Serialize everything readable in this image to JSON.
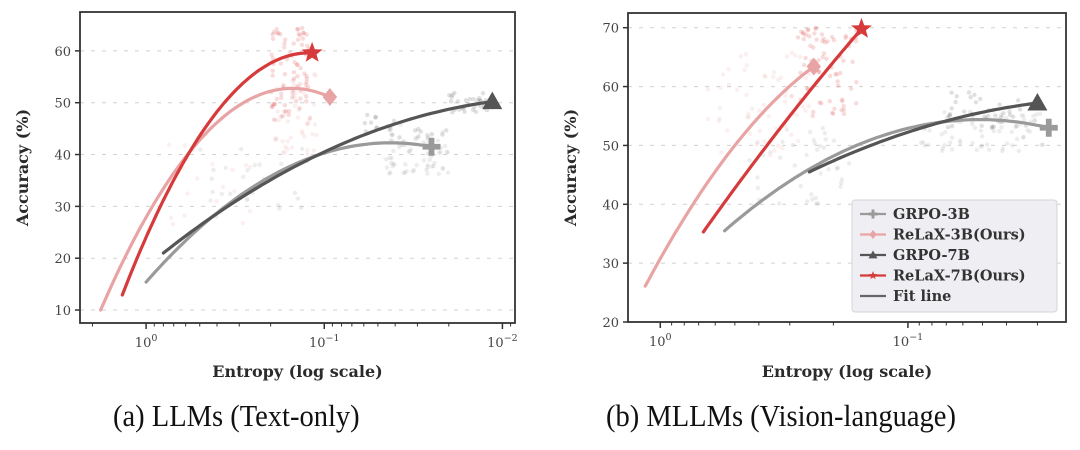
{
  "chart_data": [
    {
      "type": "scatter",
      "panel": "a",
      "caption": "(a) LLMs (Text-only)",
      "xlabel": "Entropy (log scale)",
      "ylabel": "Accuracy (%)",
      "xscale": "log",
      "x_inverted": true,
      "xlim": [
        2.35,
        0.0085
      ],
      "ylim": [
        7.5,
        67.5
      ],
      "xticks": [
        {
          "value": 1,
          "label": "10",
          "exp": "0"
        },
        {
          "value": 0.1,
          "label": "10",
          "exp": "−1"
        },
        {
          "value": 0.01,
          "label": "10",
          "exp": "−2"
        }
      ],
      "yticks": [
        10,
        20,
        30,
        40,
        50,
        60
      ],
      "grid": "horizontal-dashed",
      "legend": null,
      "series": [
        {
          "name": "GRPO-3B",
          "color": "#9a9a9a",
          "marker": "plus",
          "fit_line": [
            [
              1.0,
              15.4
            ],
            [
              0.2,
              35.8
            ],
            [
              0.025,
              41.5
            ]
          ],
          "final_point": [
            0.025,
            41.5
          ],
          "scatter_clusters": [
            {
              "x": [
                0.02,
                0.045
              ],
              "y": [
                36,
                46
              ],
              "n": 70
            },
            {
              "x": [
                0.12,
                0.5
              ],
              "y": [
                28,
                42
              ],
              "n": 25
            }
          ]
        },
        {
          "name": "ReLaX-3B(Ours)",
          "color": "#e8a4a4",
          "marker": "diamond",
          "fit_line": [
            [
              1.8,
              10.0
            ],
            [
              0.57,
              40.5
            ],
            [
              0.093,
              51.1
            ]
          ],
          "final_point": [
            0.093,
            51.1
          ],
          "scatter_clusters": [
            {
              "x": [
                0.11,
                0.2
              ],
              "y": [
                40,
                56
              ],
              "n": 50
            },
            {
              "x": [
                0.25,
                0.8
              ],
              "y": [
                26,
                42
              ],
              "n": 20
            }
          ]
        },
        {
          "name": "GRPO-7B",
          "color": "#555555",
          "marker": "triangle",
          "fit_line": [
            [
              0.8,
              21.0
            ],
            [
              0.1,
              40.5
            ],
            [
              0.0114,
              50.2
            ]
          ],
          "final_point": [
            0.0114,
            50.2
          ],
          "scatter_clusters": [
            {
              "x": [
                0.011,
                0.02
              ],
              "y": [
                48,
                52
              ],
              "n": 40
            },
            {
              "x": [
                0.02,
                0.06
              ],
              "y": [
                42,
                49
              ],
              "n": 20
            }
          ]
        },
        {
          "name": "ReLaX-7B(Ours)",
          "color": "#d63a3a",
          "marker": "star",
          "fit_line": [
            [
              1.36,
              12.9
            ],
            [
              0.57,
              40.5
            ],
            [
              0.117,
              59.6
            ]
          ],
          "final_point": [
            0.117,
            59.6
          ],
          "scatter_clusters": [
            {
              "x": [
                0.12,
                0.2
              ],
              "y": [
                45,
                65
              ],
              "n": 80
            }
          ]
        }
      ]
    },
    {
      "type": "scatter",
      "panel": "b",
      "caption": "(b) MLLMs (Vision-language)",
      "xlabel": "Entropy (log scale)",
      "ylabel": "Accuracy (%)",
      "xscale": "log",
      "x_inverted": true,
      "xlim": [
        1.35,
        0.023
      ],
      "ylim": [
        20,
        72.5
      ],
      "xticks": [
        {
          "value": 1,
          "label": "10",
          "exp": "0"
        },
        {
          "value": 0.1,
          "label": "10",
          "exp": "−1"
        }
      ],
      "yticks": [
        20,
        30,
        40,
        50,
        60,
        70
      ],
      "grid": "horizontal-dashed",
      "legend": {
        "placement": "lower-right",
        "entries": [
          "GRPO-3B",
          "ReLaX-3B(Ours)",
          "GRPO-7B",
          "ReLaX-7B(Ours)",
          "Fit line"
        ]
      },
      "series": [
        {
          "name": "GRPO-3B",
          "color": "#9a9a9a",
          "marker": "plus",
          "fit_line": [
            [
              0.55,
              35.5
            ],
            [
              0.13,
              51.5
            ],
            [
              0.027,
              53.0
            ]
          ],
          "final_point": [
            0.027,
            53.0
          ],
          "scatter_clusters": [
            {
              "x": [
                0.027,
                0.09
              ],
              "y": [
                49,
                56
              ],
              "n": 70
            },
            {
              "x": [
                0.15,
                0.45
              ],
              "y": [
                40,
                53
              ],
              "n": 40
            }
          ]
        },
        {
          "name": "ReLaX-3B(Ours)",
          "color": "#e8a4a4",
          "marker": "diamond",
          "fit_line": [
            [
              1.15,
              26.1
            ],
            [
              0.5,
              50.0
            ],
            [
              0.24,
              63.4
            ]
          ],
          "final_point": [
            0.24,
            63.4
          ],
          "scatter_clusters": [
            {
              "x": [
                0.25,
                0.65
              ],
              "y": [
                48,
                66
              ],
              "n": 60
            }
          ]
        },
        {
          "name": "GRPO-7B",
          "color": "#555555",
          "marker": "triangle",
          "fit_line": [
            [
              0.25,
              45.5
            ],
            [
              0.08,
              53.5
            ],
            [
              0.03,
              57.2
            ]
          ],
          "final_point": [
            0.03,
            57.2
          ],
          "scatter_clusters": [
            {
              "x": [
                0.03,
                0.07
              ],
              "y": [
                53,
                59
              ],
              "n": 40
            }
          ]
        },
        {
          "name": "ReLaX-7B(Ours)",
          "color": "#d63a3a",
          "marker": "star",
          "fit_line": [
            [
              0.67,
              35.3
            ],
            [
              0.3,
              55.0
            ],
            [
              0.154,
              69.8
            ]
          ],
          "final_point": [
            0.154,
            69.8
          ],
          "scatter_clusters": [
            {
              "x": [
                0.16,
                0.28
              ],
              "y": [
                55,
                70
              ],
              "n": 70
            }
          ]
        }
      ]
    }
  ]
}
